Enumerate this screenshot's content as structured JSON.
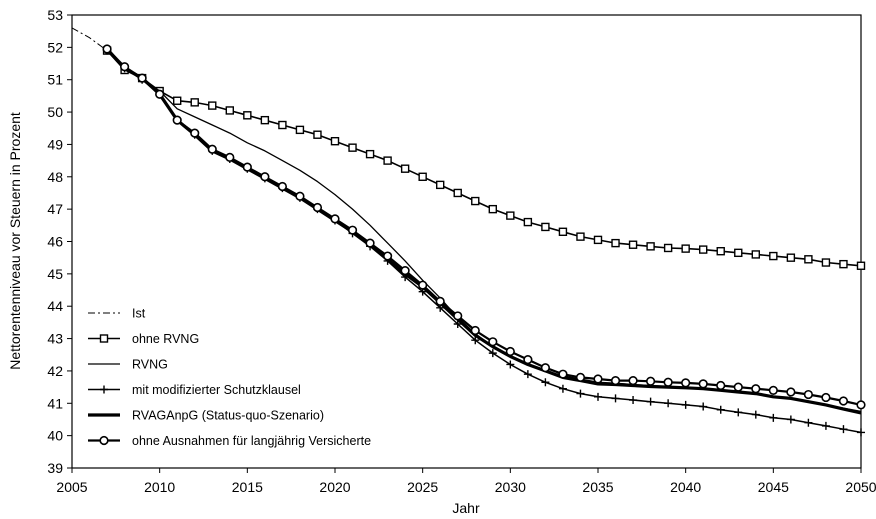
{
  "chart_data": {
    "type": "line",
    "title": "",
    "xlabel": "Jahr",
    "ylabel": "Nettorentenniveau vor Steuern in Prozent",
    "xlim": [
      2005,
      2050
    ],
    "ylim": [
      39,
      53
    ],
    "xticks": [
      2005,
      2010,
      2015,
      2020,
      2025,
      2030,
      2035,
      2040,
      2045,
      2050
    ],
    "yticks": [
      39,
      40,
      41,
      42,
      43,
      44,
      45,
      46,
      47,
      48,
      49,
      50,
      51,
      52,
      53
    ],
    "grid": false,
    "legend": "bottom-left",
    "series": [
      {
        "name": "Ist",
        "style": "dashdot",
        "x": [
          2005,
          2006,
          2007
        ],
        "values": [
          52.6,
          52.3,
          51.9
        ]
      },
      {
        "name": "ohne RVNG",
        "style": "square",
        "x": [
          2007,
          2008,
          2009,
          2010,
          2011,
          2012,
          2013,
          2014,
          2015,
          2016,
          2017,
          2018,
          2019,
          2020,
          2021,
          2022,
          2023,
          2024,
          2025,
          2026,
          2027,
          2028,
          2029,
          2030,
          2031,
          2032,
          2033,
          2034,
          2035,
          2036,
          2037,
          2038,
          2039,
          2040,
          2041,
          2042,
          2043,
          2044,
          2045,
          2046,
          2047,
          2048,
          2049,
          2050
        ],
        "values": [
          51.9,
          51.3,
          51.05,
          50.65,
          50.35,
          50.3,
          50.2,
          50.05,
          49.9,
          49.75,
          49.6,
          49.45,
          49.3,
          49.1,
          48.9,
          48.7,
          48.5,
          48.25,
          48.0,
          47.75,
          47.5,
          47.25,
          47.0,
          46.8,
          46.6,
          46.45,
          46.3,
          46.15,
          46.05,
          45.95,
          45.9,
          45.85,
          45.8,
          45.78,
          45.75,
          45.7,
          45.65,
          45.6,
          45.55,
          45.5,
          45.45,
          45.35,
          45.3,
          45.25
        ]
      },
      {
        "name": "RVNG",
        "style": "thin",
        "x": [
          2007,
          2008,
          2009,
          2010,
          2011,
          2012,
          2013,
          2014,
          2015,
          2016,
          2017,
          2018,
          2019,
          2020,
          2021,
          2022,
          2023,
          2024,
          2025,
          2026,
          2027,
          2028,
          2029,
          2030,
          2031,
          2032,
          2033,
          2034,
          2035,
          2036,
          2037,
          2038,
          2039,
          2040,
          2041,
          2042,
          2043,
          2044,
          2045,
          2046,
          2047,
          2048,
          2049,
          2050
        ],
        "values": [
          51.9,
          51.3,
          51.05,
          50.65,
          50.1,
          49.85,
          49.6,
          49.35,
          49.05,
          48.8,
          48.5,
          48.2,
          47.85,
          47.45,
          47.0,
          46.5,
          45.95,
          45.4,
          44.8,
          44.25,
          43.65,
          43.15,
          42.75,
          42.45,
          42.2,
          42.0,
          41.85,
          41.75,
          41.65,
          41.62,
          41.58,
          41.55,
          41.52,
          41.5,
          41.45,
          41.4,
          41.35,
          41.3,
          41.2,
          41.15,
          41.05,
          40.95,
          40.85,
          40.75
        ]
      },
      {
        "name": "mit modifizierter Schutzklausel",
        "style": "plus",
        "x": [
          2007,
          2008,
          2009,
          2010,
          2011,
          2012,
          2013,
          2014,
          2015,
          2016,
          2017,
          2018,
          2019,
          2020,
          2021,
          2022,
          2023,
          2024,
          2025,
          2026,
          2027,
          2028,
          2029,
          2030,
          2031,
          2032,
          2033,
          2034,
          2035,
          2036,
          2037,
          2038,
          2039,
          2040,
          2041,
          2042,
          2043,
          2044,
          2045,
          2046,
          2047,
          2048,
          2049,
          2050
        ],
        "values": [
          51.9,
          51.35,
          51.0,
          50.55,
          49.75,
          49.3,
          48.8,
          48.55,
          48.25,
          47.95,
          47.65,
          47.35,
          47.0,
          46.65,
          46.25,
          45.85,
          45.4,
          44.9,
          44.45,
          43.95,
          43.45,
          42.95,
          42.55,
          42.2,
          41.9,
          41.65,
          41.45,
          41.3,
          41.2,
          41.15,
          41.1,
          41.05,
          41.0,
          40.95,
          40.9,
          40.8,
          40.72,
          40.65,
          40.55,
          40.5,
          40.4,
          40.3,
          40.2,
          40.1
        ]
      },
      {
        "name": "RVAGAnpG (Status-quo-Szenario)",
        "style": "thick",
        "x": [
          2007,
          2008,
          2009,
          2010,
          2011,
          2012,
          2013,
          2014,
          2015,
          2016,
          2017,
          2018,
          2019,
          2020,
          2021,
          2022,
          2023,
          2024,
          2025,
          2026,
          2027,
          2028,
          2029,
          2030,
          2031,
          2032,
          2033,
          2034,
          2035,
          2036,
          2037,
          2038,
          2039,
          2040,
          2041,
          2042,
          2043,
          2044,
          2045,
          2046,
          2047,
          2048,
          2049,
          2050
        ],
        "values": [
          51.95,
          51.35,
          51.05,
          50.55,
          49.75,
          49.3,
          48.8,
          48.55,
          48.25,
          47.95,
          47.65,
          47.35,
          47.0,
          46.65,
          46.3,
          45.9,
          45.45,
          45.0,
          44.6,
          44.1,
          43.6,
          43.1,
          42.75,
          42.45,
          42.2,
          42.0,
          41.8,
          41.7,
          41.6,
          41.58,
          41.55,
          41.52,
          41.5,
          41.48,
          41.45,
          41.4,
          41.35,
          41.3,
          41.2,
          41.15,
          41.05,
          40.95,
          40.82,
          40.7
        ]
      },
      {
        "name": "ohne Ausnahmen für langjährig Versicherte",
        "style": "circle",
        "x": [
          2007,
          2008,
          2009,
          2010,
          2011,
          2012,
          2013,
          2014,
          2015,
          2016,
          2017,
          2018,
          2019,
          2020,
          2021,
          2022,
          2023,
          2024,
          2025,
          2026,
          2027,
          2028,
          2029,
          2030,
          2031,
          2032,
          2033,
          2034,
          2035,
          2036,
          2037,
          2038,
          2039,
          2040,
          2041,
          2042,
          2043,
          2044,
          2045,
          2046,
          2047,
          2048,
          2049,
          2050
        ],
        "values": [
          51.95,
          51.4,
          51.05,
          50.55,
          49.75,
          49.35,
          48.85,
          48.6,
          48.3,
          48.0,
          47.7,
          47.4,
          47.05,
          46.7,
          46.35,
          45.95,
          45.55,
          45.1,
          44.65,
          44.15,
          43.7,
          43.25,
          42.9,
          42.6,
          42.35,
          42.1,
          41.9,
          41.8,
          41.75,
          41.7,
          41.7,
          41.68,
          41.65,
          41.63,
          41.6,
          41.55,
          41.5,
          41.45,
          41.4,
          41.35,
          41.27,
          41.18,
          41.07,
          40.95
        ]
      }
    ]
  }
}
